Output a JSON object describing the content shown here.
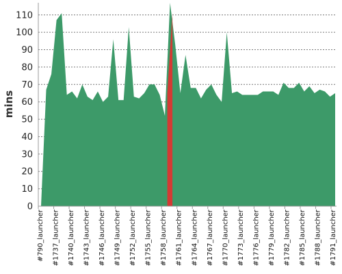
{
  "chart_data": {
    "type": "area",
    "title": "",
    "xlabel": "",
    "ylabel": "mins",
    "ylim": [
      0,
      117
    ],
    "yticks": [
      0,
      10,
      20,
      30,
      40,
      50,
      60,
      70,
      80,
      90,
      100,
      110
    ],
    "grid": true,
    "legend": "none",
    "x_tick_labels": [
      "#790_launcher",
      "#1737_launcher",
      "#1740_launcher",
      "#1743_launcher",
      "#1746_launcher",
      "#1749_launcher",
      "#1752_launcher",
      "#1755_launcher",
      "#1758_launcher",
      "#1761_launcher",
      "#1764_launcher",
      "#1767_launcher",
      "#1770_launcher",
      "#1773_launcher",
      "#1776_launcher",
      "#1779_launcher",
      "#1782_launcher",
      "#1785_launcher",
      "#1788_launcher",
      "#1791_launcher"
    ],
    "series": [
      {
        "color": "#3d9a69",
        "values": [
          0,
          67,
          76,
          107,
          111,
          64,
          66,
          62,
          70,
          63,
          61,
          66,
          60,
          63,
          96,
          61,
          61,
          103,
          63,
          62,
          65,
          70,
          70,
          64,
          52,
          117,
          93,
          65,
          87,
          68,
          68,
          62,
          67,
          70,
          64,
          60,
          100,
          65,
          66,
          64,
          64,
          64,
          64,
          66,
          66,
          66,
          64,
          71,
          68,
          68,
          71,
          66,
          69,
          65,
          67,
          66,
          63,
          65
        ]
      }
    ],
    "highlight": {
      "index": 25,
      "color": "#d43a34",
      "value": 117
    }
  }
}
